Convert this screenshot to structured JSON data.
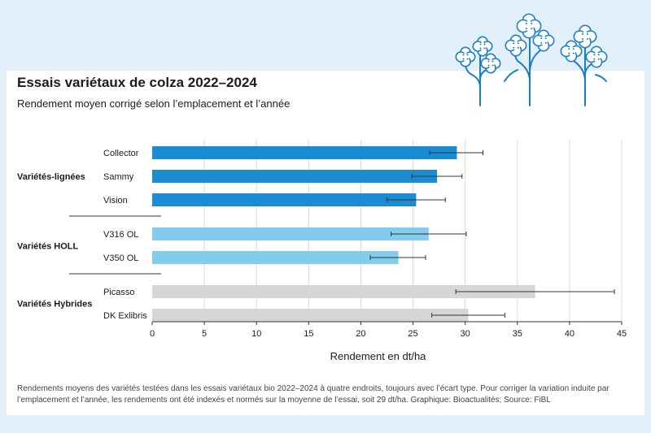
{
  "header": {
    "title": "Essais variétaux de colza 2022–2024",
    "subtitle": "Rendement moyen corrigé selon l’emplacement et l’année"
  },
  "footnote": "Rendements moyens des variétés testées dans les essais variétaux bio 2022–2024 à quatre endroits, toujours avec l’écart type. Pour corriger la variation induite par l’emplacement et l’année, les rendements ont été indexés et normés sur la moyenne de l’essai, soit 29 dt/ha. Graphique: Bioactualités; Source: FiBL",
  "colors": {
    "lignees": "#1a8cd3",
    "holl": "#82cdee",
    "hybrides": "#d6d6d6",
    "background": "#e4f0f9",
    "flowers": "#1a7fc4"
  },
  "decoration": {
    "flowers_icon": "rapeseed-flowers-icon"
  },
  "chart_data": {
    "type": "bar",
    "orientation": "horizontal",
    "title": "Essais variétaux de colza 2022–2024",
    "subtitle": "Rendement moyen corrigé selon l’emplacement et l’année",
    "xlabel": "Rendement en dt/ha",
    "xlim": [
      0,
      45
    ],
    "xticks": [
      0,
      5,
      10,
      15,
      20,
      25,
      30,
      35,
      40,
      45
    ],
    "grid": "vertical",
    "groups": [
      {
        "name": "Variétés-lignées",
        "color_key": "lignees",
        "bars": [
          {
            "label": "Collector",
            "value": 29.2,
            "err_low": 26.6,
            "err_high": 31.7
          },
          {
            "label": "Sammy",
            "value": 27.3,
            "err_low": 24.9,
            "err_high": 29.7
          },
          {
            "label": "Vision",
            "value": 25.3,
            "err_low": 22.5,
            "err_high": 28.1
          }
        ]
      },
      {
        "name": "Variétés HOLL",
        "color_key": "holl",
        "bars": [
          {
            "label": "V316 OL",
            "value": 26.5,
            "err_low": 22.9,
            "err_high": 30.1
          },
          {
            "label": "V350 OL",
            "value": 23.6,
            "err_low": 20.9,
            "err_high": 26.2
          }
        ]
      },
      {
        "name": "Variétés Hybrides",
        "color_key": "hybrides",
        "bars": [
          {
            "label": "Picasso",
            "value": 36.7,
            "err_low": 29.1,
            "err_high": 44.3
          },
          {
            "label": "DK Exlibris",
            "value": 30.3,
            "err_low": 26.8,
            "err_high": 33.8
          }
        ]
      }
    ]
  }
}
